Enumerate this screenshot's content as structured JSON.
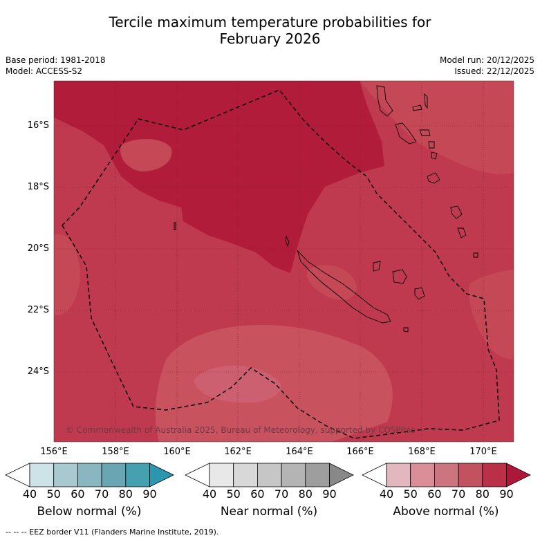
{
  "title": {
    "line1": "Tercile maximum temperature probabilities for",
    "line2": "February 2026"
  },
  "meta_left": {
    "base_period": "Base period: 1981-2018",
    "model": "Model: ACCESS-S2"
  },
  "meta_right": {
    "model_run": "Model run: 20/12/2025",
    "issued": "Issued: 22/12/2025"
  },
  "map": {
    "latitude_labels": [
      "16°S",
      "18°S",
      "20°S",
      "22°S",
      "24°S"
    ],
    "longitude_labels": [
      "156°E",
      "158°E",
      "160°E",
      "162°E",
      "164°E",
      "166°E",
      "168°E",
      "170°E"
    ],
    "copyright": "© Commonwealth of Australia 2025, Bureau of Meteorology, supported by COSPPac",
    "colors": {
      "above_80_90": "#b01c3a",
      "above_70_80": "#bf3a4e",
      "above_60_70": "#cc6070",
      "border": "#000000"
    }
  },
  "legends": [
    {
      "name": "Below normal (%)",
      "ticks": [
        "40",
        "50",
        "60",
        "70",
        "80",
        "90"
      ],
      "colors": [
        "#ffffff",
        "#cde3e8",
        "#a9c9d0",
        "#89b6c0",
        "#69a5b2",
        "#45a0b0",
        "#2a97ae"
      ]
    },
    {
      "name": "Near normal (%)",
      "ticks": [
        "40",
        "50",
        "60",
        "70",
        "80",
        "90"
      ],
      "colors": [
        "#ffffff",
        "#e8e8e8",
        "#d8d8d8",
        "#c6c6c6",
        "#b4b4b4",
        "#9e9e9e",
        "#888888"
      ]
    },
    {
      "name": "Above normal (%)",
      "ticks": [
        "40",
        "50",
        "60",
        "70",
        "80",
        "90"
      ],
      "colors": [
        "#ffffff",
        "#e2b8be",
        "#d98e98",
        "#cc7480",
        "#c2525f",
        "#b93048",
        "#ac173a"
      ]
    }
  ],
  "footnote": "-- -- -- EEZ border V11 (Flanders Marine Institute, 2019)."
}
